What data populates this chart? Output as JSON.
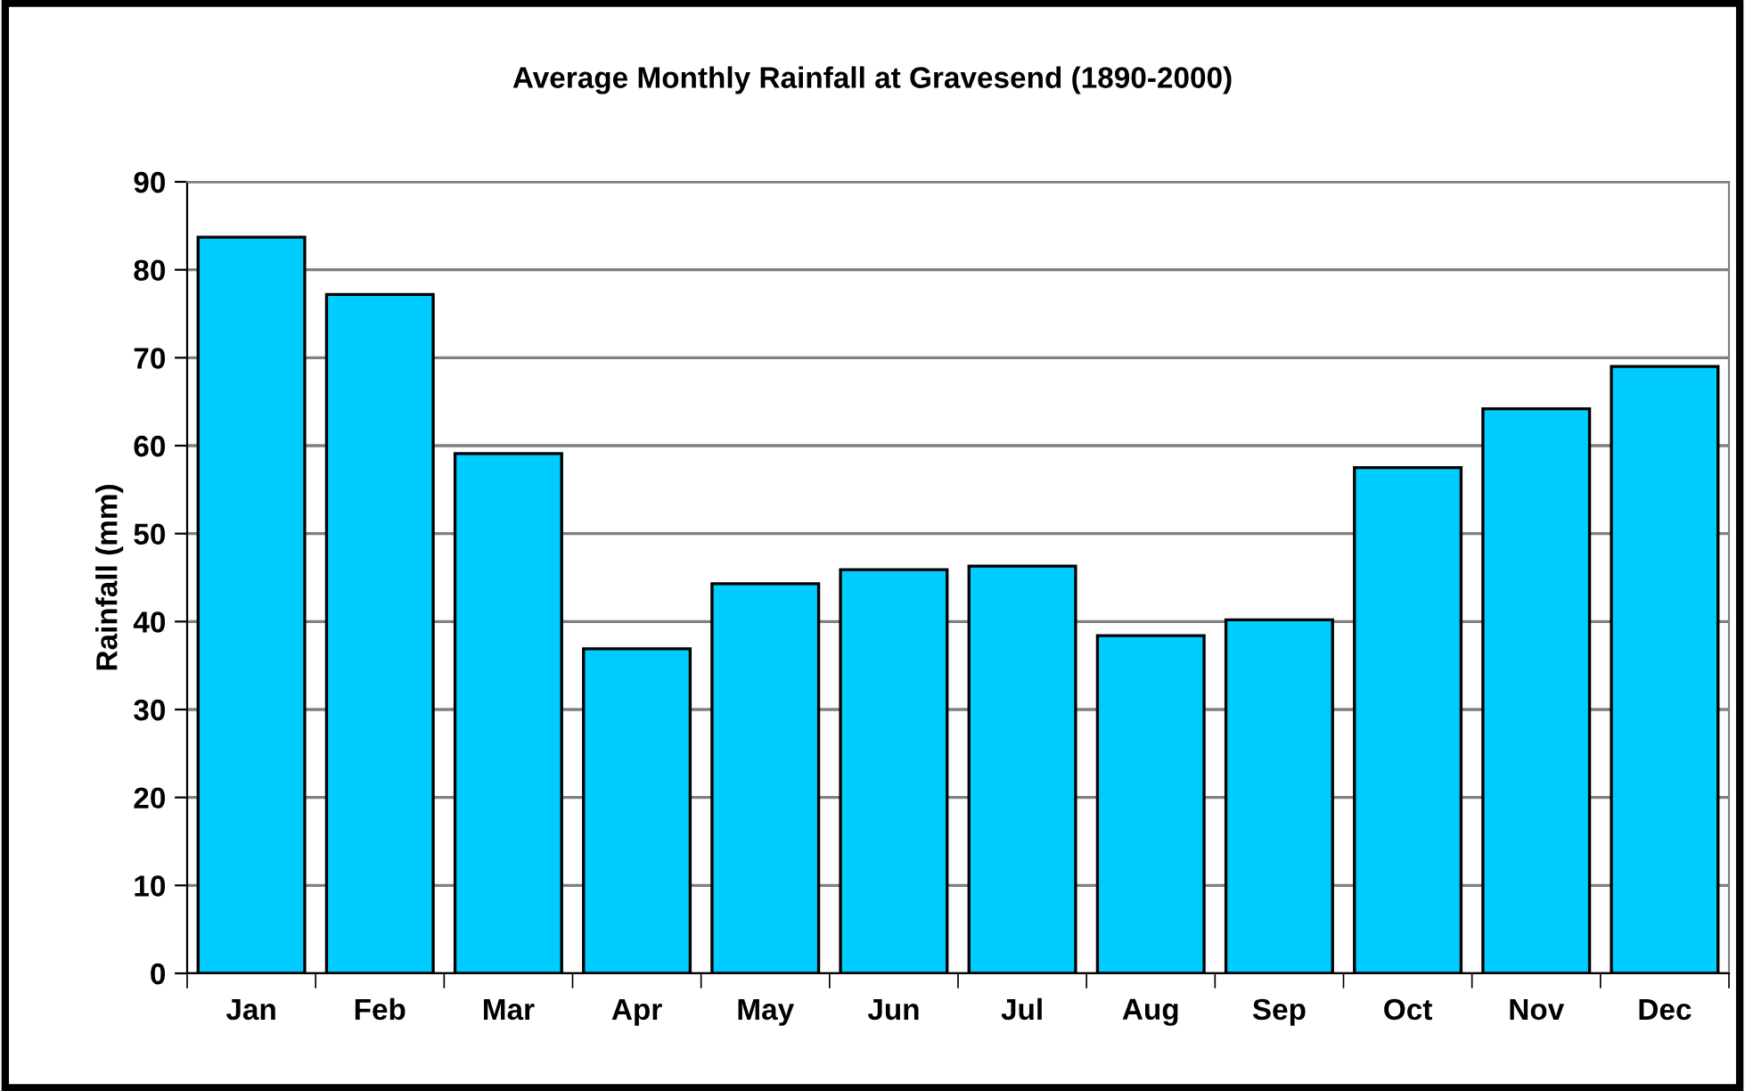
{
  "chart_data": {
    "type": "bar",
    "title": "Average Monthly Rainfall at Gravesend (1890-2000)",
    "ylabel": "Rainfall (mm)",
    "categories": [
      "Jan",
      "Feb",
      "Mar",
      "Apr",
      "May",
      "Jun",
      "Jul",
      "Aug",
      "Sep",
      "Oct",
      "Nov",
      "Dec"
    ],
    "values": [
      83.7,
      77.2,
      59.1,
      36.9,
      44.3,
      45.9,
      46.3,
      38.4,
      40.2,
      57.5,
      64.2,
      69.0
    ],
    "color": "#00ccff",
    "ylim": [
      0,
      90
    ],
    "yticks": [
      0,
      10,
      20,
      30,
      40,
      50,
      60,
      70,
      80,
      90
    ],
    "grid": "y"
  }
}
